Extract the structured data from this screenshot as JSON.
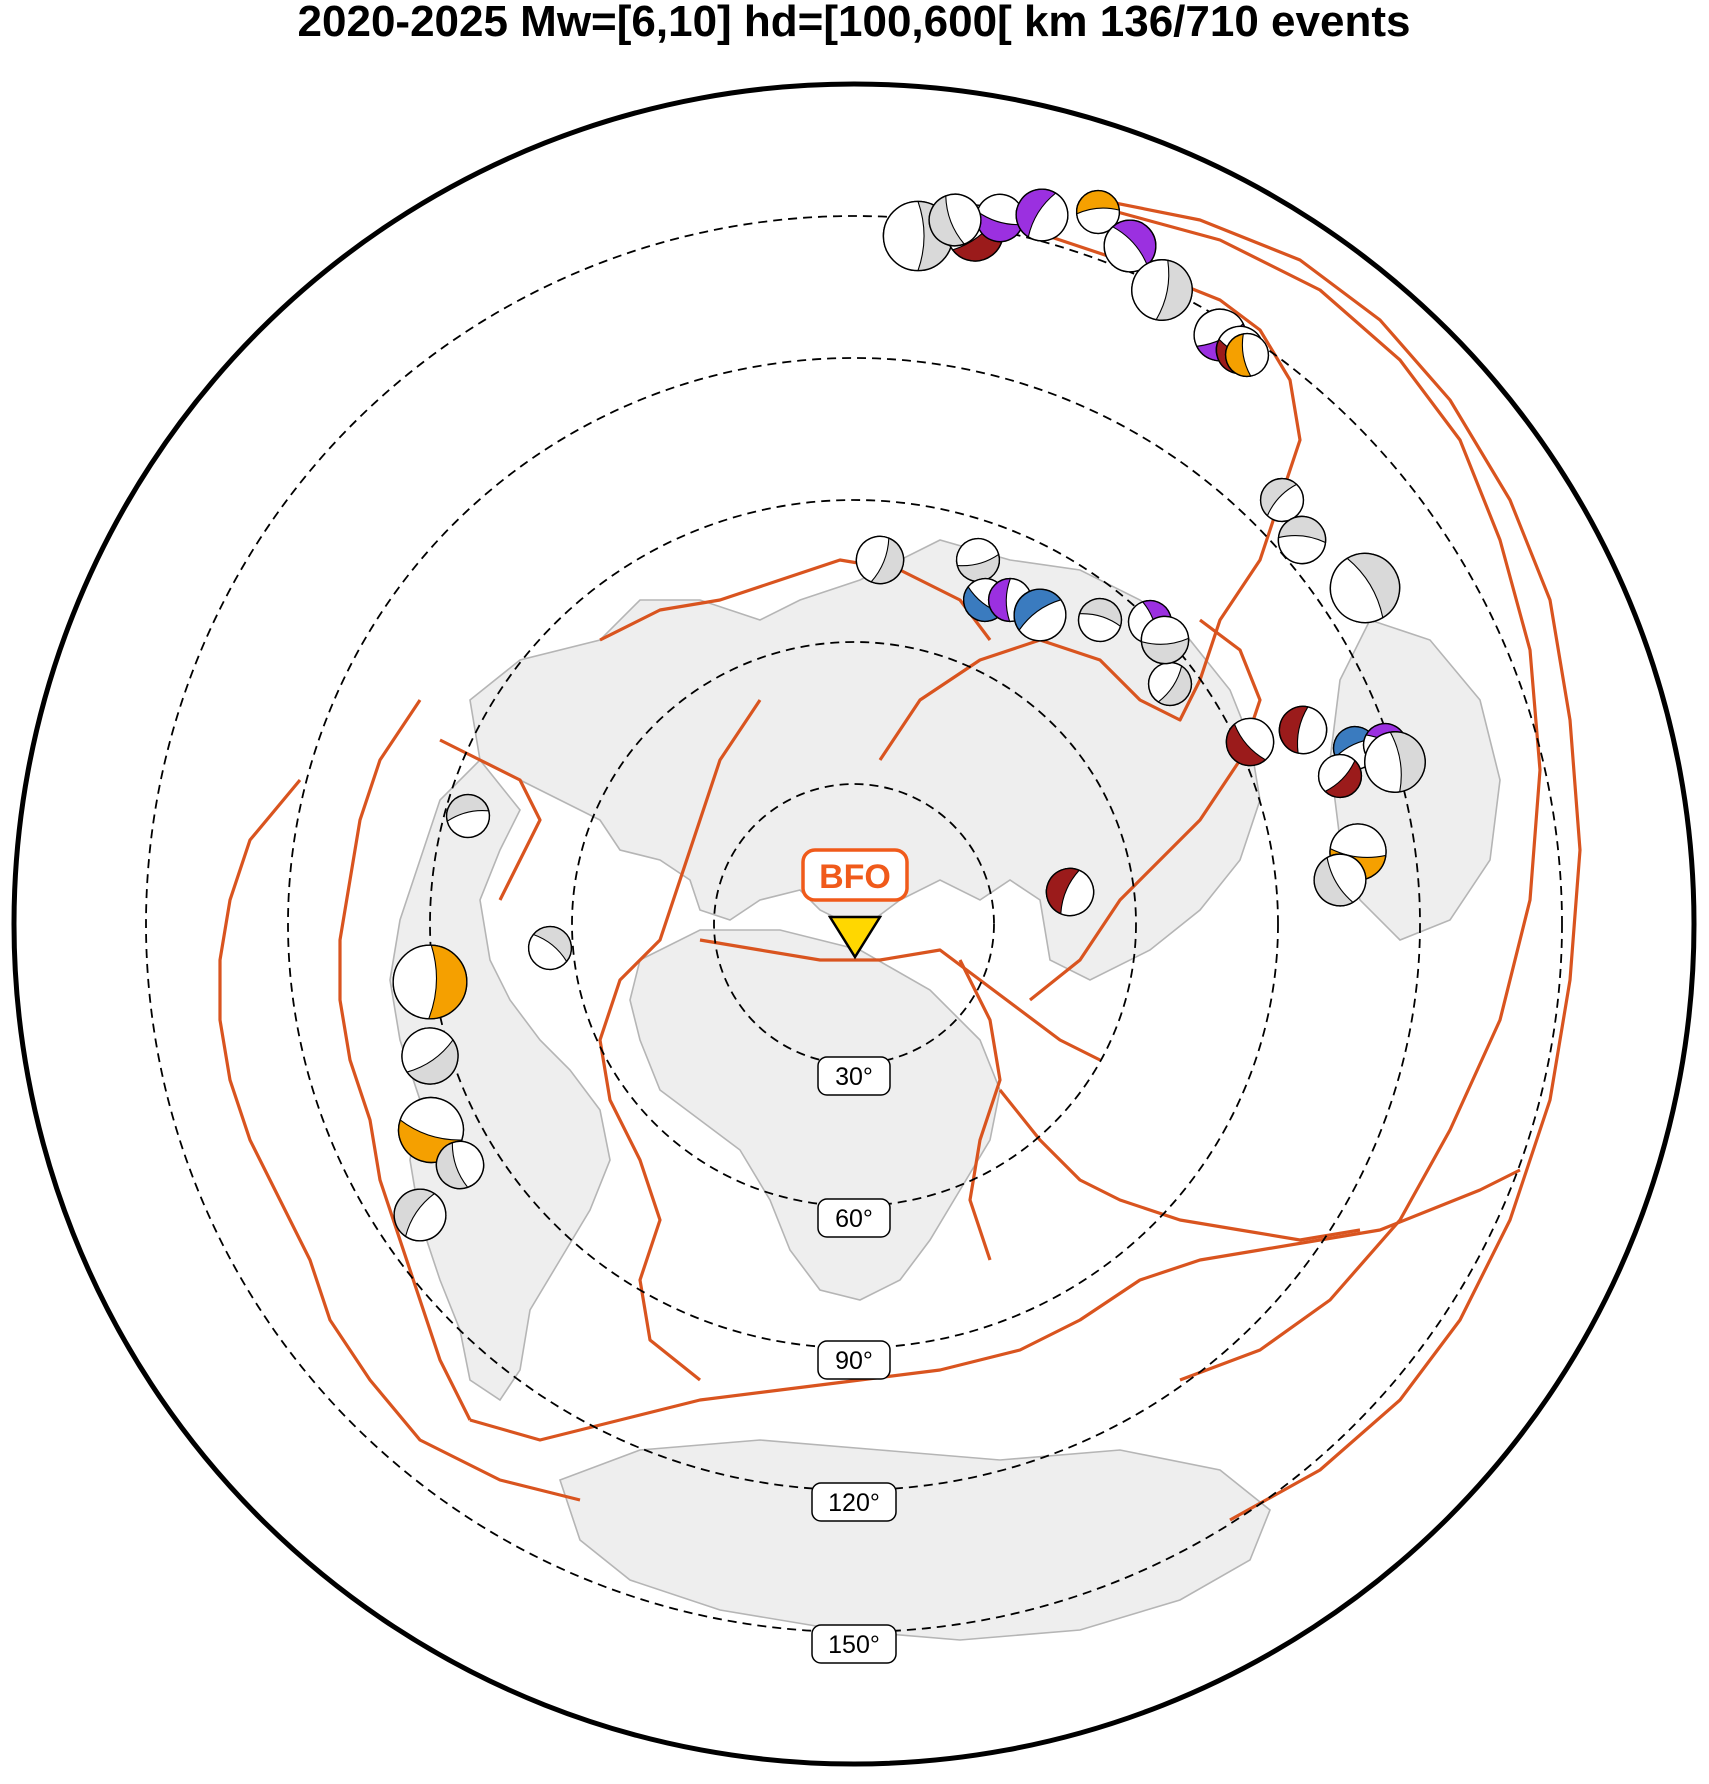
{
  "title": "2020-2025   Mw=[6,10]   hd=[100,600[ km   136/710 events",
  "station": {
    "name": "BFO",
    "marker_color": "#ffd700",
    "label_color": "#f05a1a"
  },
  "distance_rings": [
    "30°",
    "60°",
    "90°",
    "120°",
    "150°"
  ],
  "colors": {
    "plate_boundary": "#d9541f",
    "land": "#eeeeee",
    "coast": "#b5b5b5",
    "mechanism_default": "#d9d9d9",
    "mechanism_classes": [
      "#9b1b1b",
      "#9b30e0",
      "#f5a000",
      "#3a7bbf"
    ]
  },
  "mechanisms": [
    {
      "color": "#d9d9d9",
      "mag": 1.3
    },
    {
      "color": "#9b1b1b",
      "mag": 1.0
    },
    {
      "color": "#9b30e0",
      "mag": 0.8
    },
    {
      "color": "#d9d9d9",
      "mag": 0.9
    },
    {
      "color": "#9b30e0",
      "mag": 0.9
    },
    {
      "color": "#f5a000",
      "mag": 0.7
    },
    {
      "color": "#9b30e0",
      "mag": 0.9
    },
    {
      "color": "#d9d9d9",
      "mag": 1.1
    },
    {
      "color": "#9b30e0",
      "mag": 0.9
    },
    {
      "color": "#9b1b1b",
      "mag": 0.8
    },
    {
      "color": "#f5a000",
      "mag": 0.7
    },
    {
      "color": "#d9d9d9",
      "mag": 0.7
    },
    {
      "color": "#d9d9d9",
      "mag": 0.8
    },
    {
      "color": "#d9d9d9",
      "mag": 1.3
    },
    {
      "color": "#d9d9d9",
      "mag": 0.8
    },
    {
      "color": "#d9d9d9",
      "mag": 0.7
    },
    {
      "color": "#3a7bbf",
      "mag": 0.7
    },
    {
      "color": "#9b30e0",
      "mag": 0.7
    },
    {
      "color": "#3a7bbf",
      "mag": 0.9
    },
    {
      "color": "#d9d9d9",
      "mag": 0.7
    },
    {
      "color": "#9b30e0",
      "mag": 0.7
    },
    {
      "color": "#d9d9d9",
      "mag": 0.7
    },
    {
      "color": "#d9d9d9",
      "mag": 0.8
    },
    {
      "color": "#9b1b1b",
      "mag": 0.8
    },
    {
      "color": "#9b1b1b",
      "mag": 0.8
    },
    {
      "color": "#3a7bbf",
      "mag": 0.7
    },
    {
      "color": "#9b30e0",
      "mag": 0.7
    },
    {
      "color": "#d9d9d9",
      "mag": 1.1
    },
    {
      "color": "#9b1b1b",
      "mag": 0.7
    },
    {
      "color": "#f5a000",
      "mag": 1.0
    },
    {
      "color": "#d9d9d9",
      "mag": 0.9
    },
    {
      "color": "#9b1b1b",
      "mag": 0.8
    },
    {
      "color": "#d9d9d9",
      "mag": 0.7
    },
    {
      "color": "#d9d9d9",
      "mag": 0.7
    },
    {
      "color": "#f5a000",
      "mag": 1.4
    },
    {
      "color": "#d9d9d9",
      "mag": 1.0
    },
    {
      "color": "#f5a000",
      "mag": 1.2
    },
    {
      "color": "#d9d9d9",
      "mag": 0.8
    },
    {
      "color": "#d9d9d9",
      "mag": 0.9
    }
  ]
}
